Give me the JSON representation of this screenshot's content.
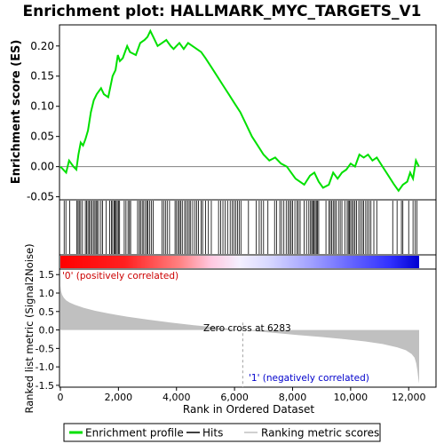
{
  "chart_data": [
    {
      "type": "line",
      "title": "Enrichment plot: HALLMARK_MYC_TARGETS_V1",
      "xlabel": "",
      "ylabel": "Enrichment score (ES)",
      "ylim": [
        -0.055,
        0.235
      ],
      "xlim": [
        0,
        12500
      ],
      "y_ticks": [
        "-0.05",
        "0.00",
        "0.05",
        "0.10",
        "0.15",
        "0.20"
      ],
      "y_tick_values": [
        -0.05,
        0.0,
        0.05,
        0.1,
        0.15,
        0.2
      ],
      "grid": false,
      "baseline": 0,
      "series": [
        {
          "name": "Enrichment profile",
          "color": "#00e000",
          "x": [
            0,
            200,
            300,
            450,
            550,
            620,
            700,
            780,
            860,
            950,
            1050,
            1150,
            1250,
            1400,
            1500,
            1650,
            1800,
            1900,
            1980,
            2050,
            2150,
            2300,
            2400,
            2600,
            2750,
            2900,
            3000,
            3100,
            3200,
            3350,
            3500,
            3650,
            3800,
            3900,
            4000,
            4100,
            4250,
            4400,
            4550,
            4700,
            4850,
            5000,
            5200,
            5400,
            5600,
            5800,
            6000,
            6200,
            6400,
            6600,
            6800,
            7000,
            7200,
            7400,
            7600,
            7800,
            7950,
            8100,
            8250,
            8400,
            8600,
            8750,
            8900,
            9050,
            9250,
            9400,
            9550,
            9700,
            9850,
            10000,
            10150,
            10300,
            10450,
            10600,
            10750,
            10900,
            11100,
            11300,
            11500,
            11650,
            11800,
            11950,
            12050,
            12150,
            12250,
            12350
          ],
          "y": [
            0.0,
            -0.01,
            0.01,
            0.0,
            -0.005,
            0.02,
            0.04,
            0.035,
            0.045,
            0.06,
            0.09,
            0.11,
            0.12,
            0.13,
            0.12,
            0.115,
            0.15,
            0.16,
            0.185,
            0.175,
            0.18,
            0.2,
            0.19,
            0.185,
            0.205,
            0.21,
            0.215,
            0.225,
            0.215,
            0.2,
            0.205,
            0.21,
            0.2,
            0.195,
            0.2,
            0.205,
            0.195,
            0.205,
            0.2,
            0.195,
            0.19,
            0.18,
            0.165,
            0.15,
            0.135,
            0.12,
            0.105,
            0.09,
            0.07,
            0.05,
            0.035,
            0.02,
            0.01,
            0.015,
            0.005,
            0.0,
            -0.01,
            -0.02,
            -0.025,
            -0.03,
            -0.015,
            -0.01,
            -0.025,
            -0.035,
            -0.03,
            -0.01,
            -0.02,
            -0.01,
            -0.005,
            0.005,
            0.0,
            0.02,
            0.015,
            0.02,
            0.01,
            0.015,
            0.0,
            -0.015,
            -0.03,
            -0.04,
            -0.03,
            -0.025,
            -0.01,
            -0.02,
            0.01,
            0.0
          ]
        }
      ]
    },
    {
      "type": "hits",
      "series": [
        {
          "name": "Hits",
          "color": "#000000",
          "hits": [
            130,
            190,
            320,
            570,
            610,
            650,
            700,
            760,
            860,
            900,
            950,
            990,
            1040,
            1090,
            1140,
            1190,
            1230,
            1270,
            1320,
            1400,
            1450,
            1580,
            1700,
            1760,
            1800,
            1850,
            1880,
            1920,
            1960,
            2000,
            2040,
            2200,
            2260,
            2330,
            2380,
            2420,
            2660,
            2720,
            2760,
            2820,
            2870,
            2930,
            2980,
            3020,
            3080,
            3140,
            3200,
            3500,
            3560,
            3620,
            3680,
            3760,
            3950,
            4000,
            4060,
            4100,
            4150,
            4200,
            4280,
            4330,
            4390,
            4440,
            4490,
            4560,
            4640,
            4700,
            4760,
            4850,
            4900,
            5000,
            5100,
            5200,
            5450,
            5520,
            5600,
            5680,
            5760,
            5850,
            5920,
            5980,
            6040,
            6100,
            6160,
            6220,
            6480,
            6750,
            6850,
            6920,
            7000,
            7150,
            7380,
            7450,
            7560,
            7620,
            7700,
            7780,
            7850,
            7900,
            7950,
            8000,
            8080,
            8150,
            8200,
            8260,
            8400,
            8480,
            8560,
            8620,
            8660,
            8700,
            8740,
            8780,
            8820,
            8860,
            8900,
            9150,
            9250,
            9300,
            9350,
            9400,
            9450,
            9500,
            9580,
            9640,
            9700,
            9800,
            9880,
            9920,
            9960,
            10000,
            10050,
            10100,
            10150,
            10200,
            10280,
            10340,
            10400,
            10450,
            10520,
            10580,
            10640,
            10700,
            10800,
            10900,
            11450,
            11600,
            11750,
            11800,
            12000,
            12150,
            12220,
            12280
          ]
        }
      ]
    },
    {
      "type": "area",
      "xlabel": "Rank in Ordered Dataset",
      "ylabel": "Ranked list metric (Signal2Noise)",
      "ylim": [
        -1.55,
        1.65
      ],
      "xlim": [
        0,
        12500
      ],
      "y_ticks": [
        "-1.5",
        "-1.0",
        "-0.5",
        "0.0",
        "0.5",
        "1.0",
        "1.5"
      ],
      "y_tick_values": [
        -1.5,
        -1.0,
        -0.5,
        0.0,
        0.5,
        1.0,
        1.5
      ],
      "x_ticks": [
        "0",
        "2,000",
        "4,000",
        "6,000",
        "8,000",
        "10,000",
        "12,000"
      ],
      "x_tick_values": [
        0,
        2000,
        4000,
        6000,
        8000,
        10000,
        12000
      ],
      "zero_cross_x": 6283,
      "series": [
        {
          "name": "Ranking metric scores",
          "color": "#c0c0c0",
          "x": [
            0,
            20,
            60,
            120,
            200,
            320,
            500,
            800,
            1200,
            1700,
            2300,
            3000,
            3800,
            4600,
            5400,
            6000,
            6283,
            6800,
            7500,
            8200,
            9000,
            9800,
            10500,
            11100,
            11600,
            11900,
            12100,
            12200,
            12260,
            12300,
            12340,
            12360
          ],
          "y": [
            1.2,
            1.05,
            0.95,
            0.87,
            0.8,
            0.74,
            0.68,
            0.6,
            0.52,
            0.44,
            0.36,
            0.28,
            0.2,
            0.13,
            0.07,
            0.02,
            0.0,
            -0.04,
            -0.09,
            -0.14,
            -0.19,
            -0.25,
            -0.31,
            -0.38,
            -0.47,
            -0.55,
            -0.65,
            -0.75,
            -0.9,
            -1.1,
            -1.35,
            -1.45
          ]
        }
      ]
    }
  ],
  "annotations": {
    "positive_label": "'0' (positively correlated)",
    "negative_label": "'1' (negatively correlated)",
    "zero_cross_label": "Zero cross at 6283"
  },
  "legend": {
    "position": "bottom",
    "items": [
      {
        "label": "Enrichment profile",
        "color": "#00e000"
      },
      {
        "label": "Hits",
        "color": "#000000"
      },
      {
        "label": "Ranking metric scores",
        "color": "#c0c0c0"
      }
    ]
  },
  "colors": {
    "heat_positive": "#ff0000",
    "heat_neutral": "#ffffff",
    "heat_negative": "#0000ff",
    "zero_line": "#808080",
    "frame": "#000000",
    "axis_text": "#000000",
    "positive_label": "#cc0000",
    "negative_label": "#0000cc"
  }
}
